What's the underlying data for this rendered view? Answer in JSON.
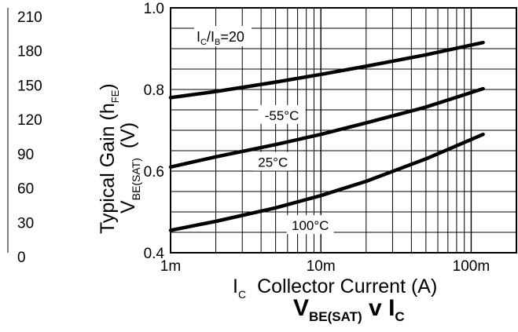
{
  "chart_data": {
    "type": "line",
    "title": "V_BE(SAT) v I_C",
    "title_main_v": "V",
    "title_sub_v": "BE(SAT)",
    "title_mid": " v ",
    "title_main_i": "I",
    "title_sub_i": "C",
    "xlabel_main": "I",
    "xlabel_sub": "C",
    "xlabel_text": "Collector Current (A)",
    "ylabel_gain_main": "Typical Gain (h",
    "ylabel_gain_sub": "FE",
    "ylabel_gain_close": ")",
    "ylabel_v_main": "V",
    "ylabel_v_sub": "BE(SAT)",
    "ylabel_v_unit": "(V)",
    "x_scale": "log",
    "xlim": [
      0.001,
      0.2
    ],
    "ylim": [
      0.4,
      1.0
    ],
    "x_ticks": [
      {
        "value": 0.001,
        "label": "1m"
      },
      {
        "value": 0.01,
        "label": "10m"
      },
      {
        "value": 0.1,
        "label": "100m"
      }
    ],
    "y_ticks": [
      {
        "value": 0.4,
        "label": "0.4"
      },
      {
        "value": 0.6,
        "label": "0.6"
      },
      {
        "value": 0.8,
        "label": "0.8"
      },
      {
        "value": 1.0,
        "label": "1.0"
      }
    ],
    "gain_ticks": [
      "210",
      "180",
      "150",
      "120",
      "90",
      "60",
      "30",
      "0"
    ],
    "grid": true,
    "condition_main": "I",
    "condition_sub1": "C",
    "condition_slash": "/I",
    "condition_sub2": "B",
    "condition_value": "=20",
    "series": [
      {
        "name": "-55°C",
        "x": [
          0.001,
          0.002,
          0.005,
          0.01,
          0.02,
          0.05,
          0.12
        ],
        "y": [
          0.78,
          0.795,
          0.818,
          0.837,
          0.857,
          0.885,
          0.915
        ]
      },
      {
        "name": "25°C",
        "x": [
          0.001,
          0.002,
          0.005,
          0.01,
          0.02,
          0.05,
          0.12
        ],
        "y": [
          0.61,
          0.635,
          0.665,
          0.69,
          0.718,
          0.757,
          0.802
        ]
      },
      {
        "name": "100°C",
        "x": [
          0.001,
          0.002,
          0.005,
          0.01,
          0.02,
          0.05,
          0.12
        ],
        "y": [
          0.455,
          0.477,
          0.51,
          0.54,
          0.575,
          0.63,
          0.69
        ]
      }
    ]
  }
}
